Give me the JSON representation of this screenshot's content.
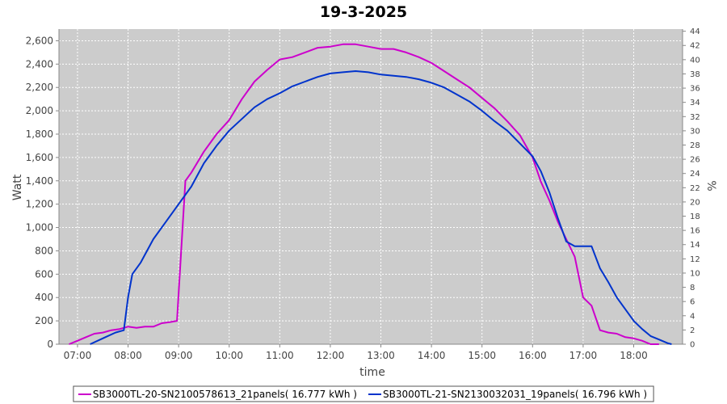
{
  "chart_data": {
    "type": "line",
    "title": "19-3-2025",
    "xlabel": "time",
    "ylabel": "Watt",
    "y2label": "%",
    "x_ticks": [
      "07:00",
      "08:00",
      "09:00",
      "10:00",
      "11:00",
      "12:00",
      "13:00",
      "14:00",
      "15:00",
      "16:00",
      "17:00",
      "18:00"
    ],
    "xlim": [
      "06:38",
      "18:58"
    ],
    "ylim": [
      0,
      2700
    ],
    "y_ticks": [
      "0",
      "200",
      "400",
      "600",
      "800",
      "1,000",
      "1,200",
      "1,400",
      "1,600",
      "1,800",
      "2,000",
      "2,200",
      "2,400",
      "2,600"
    ],
    "y2lim": [
      0,
      44.3
    ],
    "y2_ticks": [
      "0",
      "2",
      "4",
      "6",
      "8",
      "10",
      "12",
      "14",
      "16",
      "18",
      "20",
      "22",
      "24",
      "26",
      "28",
      "30",
      "32",
      "34",
      "36",
      "38",
      "40",
      "42",
      "44"
    ],
    "grid": true,
    "background": "#cccccc",
    "legend_position": "bottom",
    "series": [
      {
        "name": "SB3000TL-20-SN2100578613_21panels( 16.777 kWh )",
        "color": "#cc00cc",
        "x": [
          "06:50",
          "07:00",
          "07:10",
          "07:20",
          "07:30",
          "07:40",
          "07:50",
          "08:00",
          "08:10",
          "08:20",
          "08:30",
          "08:40",
          "08:50",
          "08:58",
          "09:03",
          "09:08",
          "09:15",
          "09:30",
          "09:45",
          "10:00",
          "10:15",
          "10:30",
          "10:45",
          "11:00",
          "11:15",
          "11:30",
          "11:45",
          "12:00",
          "12:15",
          "12:30",
          "12:45",
          "13:00",
          "13:15",
          "13:30",
          "13:45",
          "14:00",
          "14:15",
          "14:30",
          "14:45",
          "15:00",
          "15:15",
          "15:30",
          "15:45",
          "16:00",
          "16:10",
          "16:20",
          "16:30",
          "16:40",
          "16:50",
          "17:00",
          "17:10",
          "17:20",
          "17:30",
          "17:40",
          "17:50",
          "18:00",
          "18:10",
          "18:20",
          "18:30"
        ],
        "values": [
          0,
          30,
          60,
          90,
          100,
          120,
          130,
          150,
          140,
          150,
          150,
          180,
          190,
          200,
          800,
          1400,
          1470,
          1650,
          1800,
          1920,
          2100,
          2250,
          2350,
          2440,
          2460,
          2500,
          2540,
          2550,
          2570,
          2570,
          2550,
          2530,
          2530,
          2500,
          2460,
          2410,
          2340,
          2270,
          2200,
          2110,
          2020,
          1910,
          1790,
          1600,
          1390,
          1230,
          1050,
          900,
          750,
          400,
          330,
          120,
          100,
          90,
          60,
          50,
          30,
          0,
          0
        ]
      },
      {
        "name": "SB3000TL-21-SN2130032031_19panels( 16.796 kWh )",
        "color": "#0033cc",
        "x": [
          "07:15",
          "07:30",
          "07:45",
          "07:55",
          "08:00",
          "08:05",
          "08:15",
          "08:30",
          "08:45",
          "09:00",
          "09:15",
          "09:30",
          "09:45",
          "10:00",
          "10:15",
          "10:30",
          "10:45",
          "11:00",
          "11:15",
          "11:30",
          "11:45",
          "12:00",
          "12:15",
          "12:30",
          "12:45",
          "13:00",
          "13:15",
          "13:30",
          "13:45",
          "14:00",
          "14:15",
          "14:30",
          "14:45",
          "15:00",
          "15:15",
          "15:30",
          "15:45",
          "16:00",
          "16:10",
          "16:20",
          "16:30",
          "16:40",
          "16:50",
          "17:00",
          "17:10",
          "17:20",
          "17:30",
          "17:40",
          "17:50",
          "18:00",
          "18:10",
          "18:20",
          "18:30",
          "18:40",
          "18:45"
        ],
        "values": [
          0,
          50,
          100,
          120,
          400,
          600,
          700,
          900,
          1050,
          1200,
          1350,
          1550,
          1700,
          1830,
          1930,
          2030,
          2100,
          2150,
          2210,
          2250,
          2290,
          2320,
          2330,
          2340,
          2330,
          2310,
          2300,
          2290,
          2270,
          2240,
          2200,
          2140,
          2080,
          2000,
          1910,
          1830,
          1720,
          1610,
          1480,
          1300,
          1080,
          880,
          840,
          840,
          840,
          650,
          530,
          400,
          300,
          200,
          130,
          70,
          40,
          10,
          0
        ]
      }
    ]
  }
}
